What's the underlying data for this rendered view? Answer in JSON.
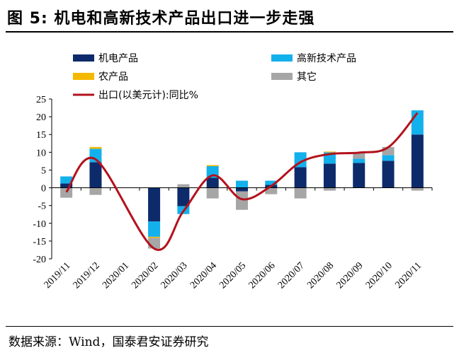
{
  "header": {
    "title": "图 5: 机电和高新技术产品出口进一步走强"
  },
  "source": "数据来源：Wind，国泰君安证券研究",
  "chart_data": {
    "type": "bar",
    "stacked": true,
    "categories": [
      "2019/11",
      "2019/12",
      "2020/01",
      "2020/02",
      "2020/03",
      "2020/04",
      "2020/05",
      "2020/06",
      "2020/07",
      "2020/08",
      "2020/09",
      "2020/10",
      "2020/11"
    ],
    "ylim": [
      -20,
      25
    ],
    "yticks": [
      25,
      20,
      15,
      10,
      5,
      0,
      -5,
      -10,
      -15,
      -20
    ],
    "legend_position": "top",
    "series": [
      {
        "name": "机电产品",
        "color": "#0d2b6b",
        "type": "bar",
        "values": [
          1.2,
          7.2,
          null,
          -9.5,
          -5.2,
          2.8,
          -1.0,
          0.8,
          5.8,
          6.8,
          7.0,
          7.6,
          15.0
        ]
      },
      {
        "name": "高新技术产品",
        "color": "#13b1ec",
        "type": "bar",
        "values": [
          2.0,
          3.8,
          null,
          -4.3,
          -2.2,
          3.3,
          2.0,
          1.2,
          4.2,
          3.2,
          1.2,
          1.6,
          6.8
        ]
      },
      {
        "name": "农产品",
        "color": "#f5b800",
        "type": "bar",
        "values": [
          0.0,
          0.5,
          null,
          -0.3,
          0.0,
          0.3,
          0.0,
          0.0,
          0.0,
          0.2,
          0.0,
          0.0,
          0.0
        ]
      },
      {
        "name": "其它",
        "color": "#a6a6a6",
        "type": "bar",
        "values": [
          -2.8,
          -2.0,
          null,
          -3.0,
          1.0,
          -3.0,
          -5.2,
          -1.8,
          -3.0,
          -0.8,
          1.8,
          2.3,
          -0.8
        ]
      },
      {
        "name": "出口(以美元计):同比%",
        "color": "#b3121c",
        "type": "line",
        "values": [
          -1.2,
          8.0,
          null,
          -17.1,
          -6.6,
          3.5,
          -3.2,
          0.5,
          7.2,
          9.5,
          9.9,
          11.4,
          21.1
        ]
      }
    ]
  }
}
